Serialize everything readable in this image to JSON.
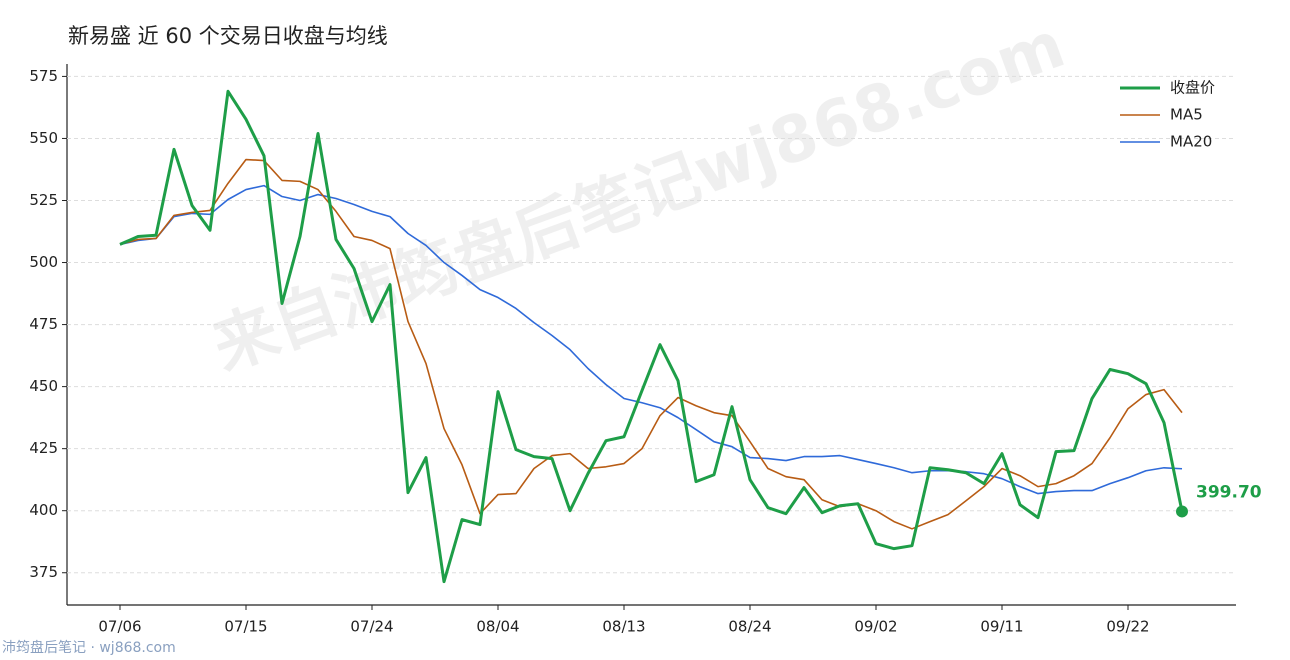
{
  "chart_data": {
    "type": "line",
    "title": "新易盛 近 60 个交易日收盘与均线",
    "watermark": "来自沛筠盘后笔记wj868.com",
    "footer": "沛筠盘后笔记 · wj868.com",
    "categories": [
      "07/06",
      null,
      null,
      null,
      null,
      null,
      null,
      "07/15",
      null,
      null,
      null,
      null,
      null,
      null,
      "07/24",
      null,
      null,
      null,
      null,
      null,
      null,
      "08/04",
      null,
      null,
      null,
      null,
      null,
      null,
      "08/13",
      null,
      null,
      null,
      null,
      null,
      null,
      "08/24",
      null,
      null,
      null,
      null,
      null,
      null,
      "09/02",
      null,
      null,
      null,
      null,
      null,
      null,
      "09/11",
      null,
      null,
      null,
      null,
      null,
      null,
      "09/22",
      null,
      null,
      null
    ],
    "series": [
      {
        "name": "收盘价",
        "color": "#1e9e48",
        "width": 3,
        "values": [
          507.3,
          510.5,
          511,
          545.6,
          523,
          513,
          569,
          557.7,
          543,
          483.5,
          510.5,
          552,
          509.3,
          497.6,
          476.2,
          491.1,
          407.3,
          421.4,
          371.4,
          396.4,
          394.4,
          448,
          424.6,
          421.8,
          421,
          400,
          415,
          428.2,
          429.8,
          448.4,
          466.9,
          452.4,
          411.7,
          414.5,
          441.9,
          412.5,
          401.2,
          398.8,
          409.3,
          399.2,
          402,
          402.8,
          386.7,
          384.7,
          385.9,
          417.3,
          416.5,
          415.3,
          410.9,
          423,
          402.4,
          397.2,
          423.8,
          424.2,
          445.2,
          456.9,
          455.2,
          451.2,
          435.5,
          399.7
        ],
        "value_labels": [
          null,
          null,
          null,
          null,
          null,
          null,
          null,
          null,
          null,
          null,
          null,
          null,
          null,
          null,
          null,
          null,
          null,
          null,
          null,
          null,
          null,
          null,
          null,
          null,
          null,
          null,
          null,
          null,
          null,
          null,
          null,
          null,
          null,
          null,
          null,
          null,
          null,
          null,
          null,
          null,
          null,
          null,
          null,
          null,
          null,
          null,
          null,
          null,
          null,
          null,
          null,
          null,
          null,
          null,
          null,
          null,
          null,
          null,
          null,
          "399.70"
        ]
      },
      {
        "name": "MA5",
        "color": "#b85c14",
        "width": 1.6,
        "values": [
          507.3,
          509.3,
          509.7,
          519,
          520.2,
          521,
          531.9,
          541.5,
          541.1,
          533.1,
          532.7,
          529.4,
          520.6,
          510.5,
          508.9,
          505.6,
          476.2,
          459.3,
          433.1,
          418.5,
          398.8,
          406.5,
          406.9,
          417,
          422.2,
          423,
          417,
          417.7,
          419,
          425,
          438.3,
          445.6,
          442.3,
          439.5,
          438.3,
          427.8,
          417,
          413.7,
          412.5,
          404.4,
          401.6,
          402.8,
          400,
          395.6,
          392.7,
          395.6,
          398.4,
          404,
          409.7,
          417,
          414.1,
          409.7,
          410.9,
          414.1,
          419,
          429.4,
          441.1,
          446.8,
          448.8,
          439.5
        ]
      },
      {
        "name": "MA20",
        "color": "#2f6ad9",
        "width": 1.6,
        "values": [
          507.3,
          508.9,
          509.7,
          518.5,
          519.8,
          519.4,
          525.4,
          529.4,
          531,
          526.6,
          525,
          527.4,
          525.8,
          523.4,
          520.6,
          518.5,
          511.7,
          506.9,
          500,
          494.8,
          489.1,
          485.9,
          481.5,
          475.8,
          470.6,
          464.9,
          457.3,
          450.8,
          445.2,
          443.5,
          441.5,
          437.5,
          432.7,
          427.8,
          425.8,
          421.4,
          421,
          420.2,
          421.8,
          421.8,
          422.2,
          420.6,
          419,
          417.3,
          415.3,
          416.1,
          416.1,
          415.7,
          414.9,
          412.9,
          409.7,
          406.9,
          407.7,
          408.1,
          408.1,
          410.9,
          413.3,
          416.1,
          417.3,
          416.9
        ]
      }
    ],
    "ylim": [
      362,
      580
    ],
    "yticks": [
      375,
      400,
      425,
      450,
      475,
      500,
      525,
      550,
      575
    ],
    "grid": true,
    "legend": "upper right"
  }
}
